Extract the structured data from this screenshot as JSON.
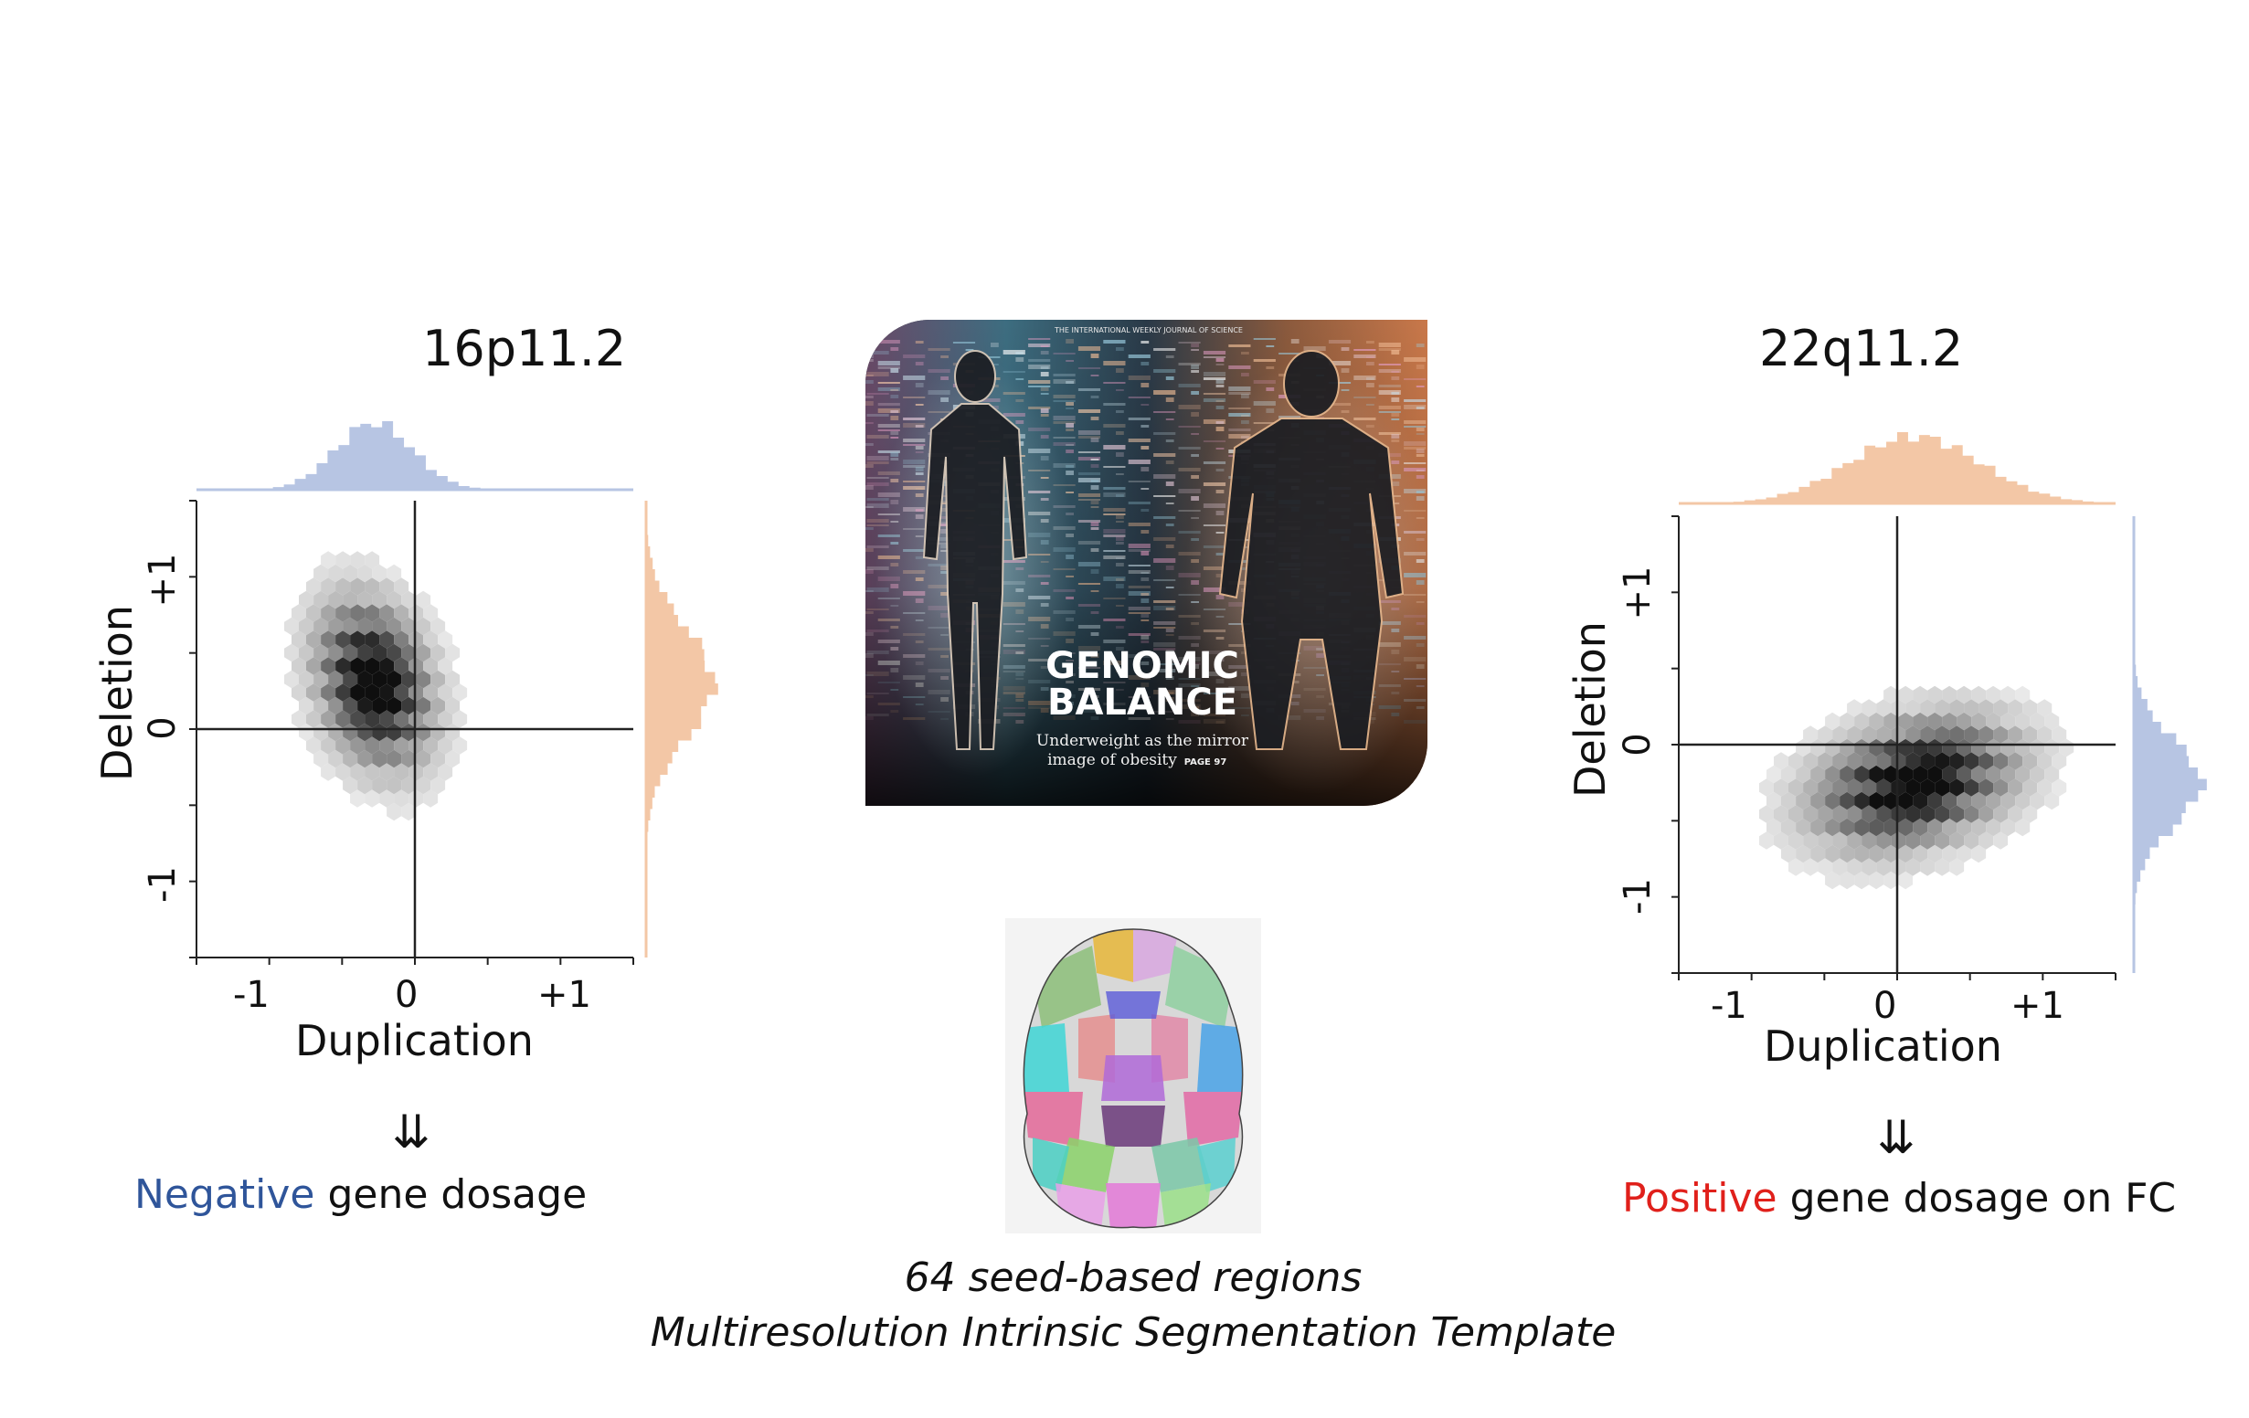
{
  "chart_data": [
    {
      "type": "hexbin",
      "title": "16p11.2",
      "xlabel": "Duplication",
      "ylabel": "Deletion",
      "xlim": [
        -1.5,
        1.5
      ],
      "ylim": [
        -1.5,
        1.5
      ],
      "x_ticks": [
        "-1",
        "0",
        "+1"
      ],
      "y_ticks": [
        "-1",
        "0",
        "+1"
      ],
      "density_center": [
        -0.28,
        0.3
      ],
      "density_spread": [
        0.26,
        0.36
      ],
      "density_correlation": -0.25,
      "marginal_x_color": "#b7c5e3",
      "marginal_y_color": "#f3c7a6",
      "conclusion_lead": "Negative",
      "conclusion_lead_color": "#2f559a",
      "conclusion_rest": "gene dosage"
    },
    {
      "type": "hexbin",
      "title": "22q11.2",
      "xlabel": "Duplication",
      "ylabel": "Deletion",
      "xlim": [
        -1.5,
        1.5
      ],
      "ylim": [
        -1.5,
        1.5
      ],
      "x_ticks": [
        "-1",
        "0",
        "+1"
      ],
      "y_ticks": [
        "-1",
        "0",
        "+1"
      ],
      "density_center": [
        0.12,
        -0.25
      ],
      "density_spread": [
        0.45,
        0.28
      ],
      "density_correlation": 0.3,
      "marginal_x_color": "#f3c7a6",
      "marginal_y_color": "#b7c5e3",
      "conclusion_lead": "Positive",
      "conclusion_lead_color": "#e0201b",
      "conclusion_rest": "gene dosage on FC"
    }
  ],
  "arrow_glyph": "⇊",
  "cover": {
    "masthead": "THE INTERNATIONAL WEEKLY JOURNAL OF SCIENCE",
    "headline_line1": "GENOMIC",
    "headline_line2": "BALANCE",
    "subline1": "Underweight as the mirror",
    "subline2": "image of obesity",
    "page_ref": "PAGE 97"
  },
  "caption_line1": "64 seed-based regions",
  "caption_line2": "Multiresolution Intrinsic Segmentation Template"
}
